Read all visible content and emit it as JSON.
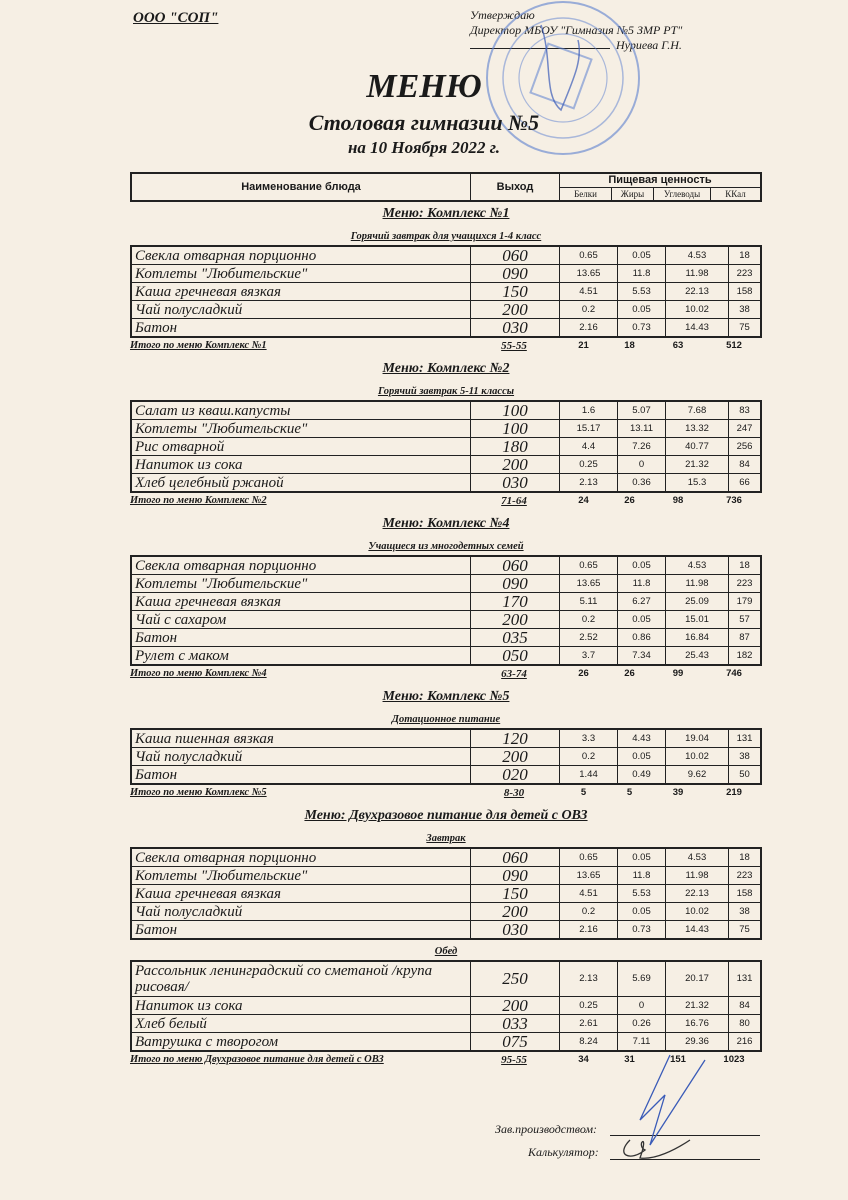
{
  "header": {
    "organization": "ООО \"СОП\"",
    "approve_label": "Утверждаю",
    "director": "Директор МБОУ \"Гимназия №5 ЗМР РТ\"",
    "director_name": "Нуриева Г.Н.",
    "title": "МЕНЮ",
    "subtitle": "Столовая гимназии №5",
    "date": "на 10 Ноября 2022 г."
  },
  "table_header": {
    "name": "Наименование блюда",
    "output": "Выход",
    "nutrition": "Пищевая ценность",
    "columns": [
      "Белки",
      "Жиры",
      "Углеводы",
      "ККал"
    ]
  },
  "sections": [
    {
      "title": "Меню: Комплекс №1",
      "groups": [
        {
          "subtitle": "Горячий завтрак для учащихся 1-4 класс",
          "rows": [
            [
              "Свекла отварная порционно",
              "060",
              "0.65",
              "0.05",
              "4.53",
              "18"
            ],
            [
              "Котлеты  \"Любительские\"",
              "090",
              "13.65",
              "11.8",
              "11.98",
              "223"
            ],
            [
              "Каша гречневая вязкая",
              "150",
              "4.51",
              "5.53",
              "22.13",
              "158"
            ],
            [
              "Чай полусладкий",
              "200",
              "0.2",
              "0.05",
              "10.02",
              "38"
            ],
            [
              "Батон",
              "030",
              "2.16",
              "0.73",
              "14.43",
              "75"
            ]
          ]
        }
      ],
      "total": [
        "Итого по меню Комплекс №1",
        "55-55",
        "21",
        "18",
        "63",
        "512"
      ]
    },
    {
      "title": "Меню: Комплекс №2",
      "groups": [
        {
          "subtitle": "Горячий завтрак 5-11 классы",
          "rows": [
            [
              "Салат из кваш.капусты",
              "100",
              "1.6",
              "5.07",
              "7.68",
              "83"
            ],
            [
              "Котлеты  \"Любительские\"",
              "100",
              "15.17",
              "13.11",
              "13.32",
              "247"
            ],
            [
              "Рис отварной",
              "180",
              "4.4",
              "7.26",
              "40.77",
              "256"
            ],
            [
              "Напиток  из сока",
              "200",
              "0.25",
              "0",
              "21.32",
              "84"
            ],
            [
              "Хлеб  целебный ржаной",
              "030",
              "2.13",
              "0.36",
              "15.3",
              "66"
            ]
          ]
        }
      ],
      "total": [
        "Итого по меню Комплекс №2",
        "71-64",
        "24",
        "26",
        "98",
        "736"
      ]
    },
    {
      "title": "Меню: Комплекс №4",
      "groups": [
        {
          "subtitle": "Учащиеся из многодетных семей",
          "rows": [
            [
              "Свекла отварная порционно",
              "060",
              "0.65",
              "0.05",
              "4.53",
              "18"
            ],
            [
              "Котлеты  \"Любительские\"",
              "090",
              "13.65",
              "11.8",
              "11.98",
              "223"
            ],
            [
              "Каша гречневая вязкая",
              "170",
              "5.11",
              "6.27",
              "25.09",
              "179"
            ],
            [
              "Чай с сахаром",
              "200",
              "0.2",
              "0.05",
              "15.01",
              "57"
            ],
            [
              "Батон",
              "035",
              "2.52",
              "0.86",
              "16.84",
              "87"
            ],
            [
              "Рулет с маком",
              "050",
              "3.7",
              "7.34",
              "25.43",
              "182"
            ]
          ]
        }
      ],
      "total": [
        "Итого по меню Комплекс №4",
        "63-74",
        "26",
        "26",
        "99",
        "746"
      ]
    },
    {
      "title": "Меню: Комплекс №5",
      "groups": [
        {
          "subtitle": "Дотационное питание",
          "rows": [
            [
              "Каша пшенная вязкая",
              "120",
              "3.3",
              "4.43",
              "19.04",
              "131"
            ],
            [
              "Чай полусладкий",
              "200",
              "0.2",
              "0.05",
              "10.02",
              "38"
            ],
            [
              "Батон",
              "020",
              "1.44",
              "0.49",
              "9.62",
              "50"
            ]
          ]
        }
      ],
      "total": [
        "Итого по меню Комплекс №5",
        "8-30",
        "5",
        "5",
        "39",
        "219"
      ]
    },
    {
      "title": "Меню: Двухразовое питание для детей с ОВЗ",
      "groups": [
        {
          "subtitle": "Завтрак",
          "rows": [
            [
              "Свекла отварная порционно",
              "060",
              "0.65",
              "0.05",
              "4.53",
              "18"
            ],
            [
              "Котлеты  \"Любительские\"",
              "090",
              "13.65",
              "11.8",
              "11.98",
              "223"
            ],
            [
              "Каша гречневая вязкая",
              "150",
              "4.51",
              "5.53",
              "22.13",
              "158"
            ],
            [
              "Чай полусладкий",
              "200",
              "0.2",
              "0.05",
              "10.02",
              "38"
            ],
            [
              "Батон",
              "030",
              "2.16",
              "0.73",
              "14.43",
              "75"
            ]
          ]
        },
        {
          "subtitle": "Обед",
          "rows": [
            [
              "Рассольник ленинградский со сметаной /крупа рисовая/",
              "250",
              "2.13",
              "5.69",
              "20.17",
              "131"
            ],
            [
              "Напиток  из сока",
              "200",
              "0.25",
              "0",
              "21.32",
              "84"
            ],
            [
              "Хлеб белый",
              "033",
              "2.61",
              "0.26",
              "16.76",
              "80"
            ],
            [
              "Ватрушка с творогом",
              "075",
              "8.24",
              "7.11",
              "29.36",
              "216"
            ]
          ]
        }
      ],
      "total": [
        "Итого по меню Двухразовое питание для детей с ОВЗ",
        "95-55",
        "34",
        "31",
        "151",
        "1023"
      ]
    }
  ],
  "signatures": {
    "production_head": "Зав.производством:",
    "calculator": "Калькулятор:"
  },
  "colors": {
    "paper": "#f6efe4",
    "stamp": "#4a6fc4",
    "ink": "#1a1a1a"
  }
}
